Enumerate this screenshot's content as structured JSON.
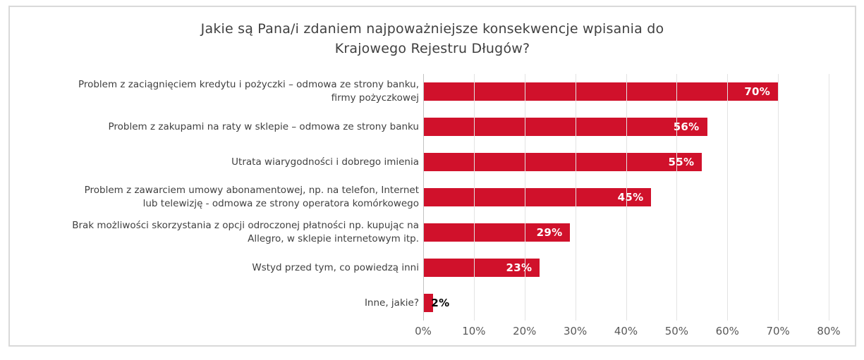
{
  "chart_data": {
    "type": "bar",
    "orientation": "horizontal",
    "title": "Jakie są Pana/i zdaniem najpoważniejsze konsekwencje wpisania do Krajowego Rejestru Długów?",
    "title_lines": [
      "Jakie są Pana/i zdaniem najpoważniejsze konsekwencje wpisania do",
      "Krajowego Rejestru Długów?"
    ],
    "categories": [
      "Problem z zaciągnięciem kredytu i pożyczki – odmowa ze strony banku,\nfirmy pożyczkowej",
      "Problem z zakupami na raty w sklepie – odmowa ze strony banku",
      "Utrata wiarygodności i dobrego imienia",
      "Problem z zawarciem umowy abonamentowej, np. na telefon, Internet\nlub telewizję - odmowa ze strony operatora komórkowego",
      "Brak możliwości skorzystania z opcji odroczonej płatności np. kupując na\nAllegro, w sklepie internetowym itp.",
      "Wstyd przed tym, co powiedzą inni",
      "Inne, jakie?"
    ],
    "values": [
      70,
      56,
      55,
      45,
      29,
      23,
      2
    ],
    "value_labels": [
      "70%",
      "56%",
      "55%",
      "45%",
      "29%",
      "23%",
      "2%"
    ],
    "xlabel": "",
    "ylabel": "",
    "xlim": [
      0,
      80
    ],
    "x_ticks": [
      "0%",
      "10%",
      "20%",
      "30%",
      "40%",
      "50%",
      "60%",
      "70%",
      "80%"
    ],
    "grid": true,
    "legend": false,
    "colors": {
      "bar": "#d0112b",
      "value_label_inside": "#ffffff",
      "value_label_outside": "#000000",
      "title_text": "#404040",
      "category_text": "#404040",
      "axis_text": "#595959",
      "gridline": "#e3e3e3"
    },
    "inside_label_threshold": 5
  }
}
